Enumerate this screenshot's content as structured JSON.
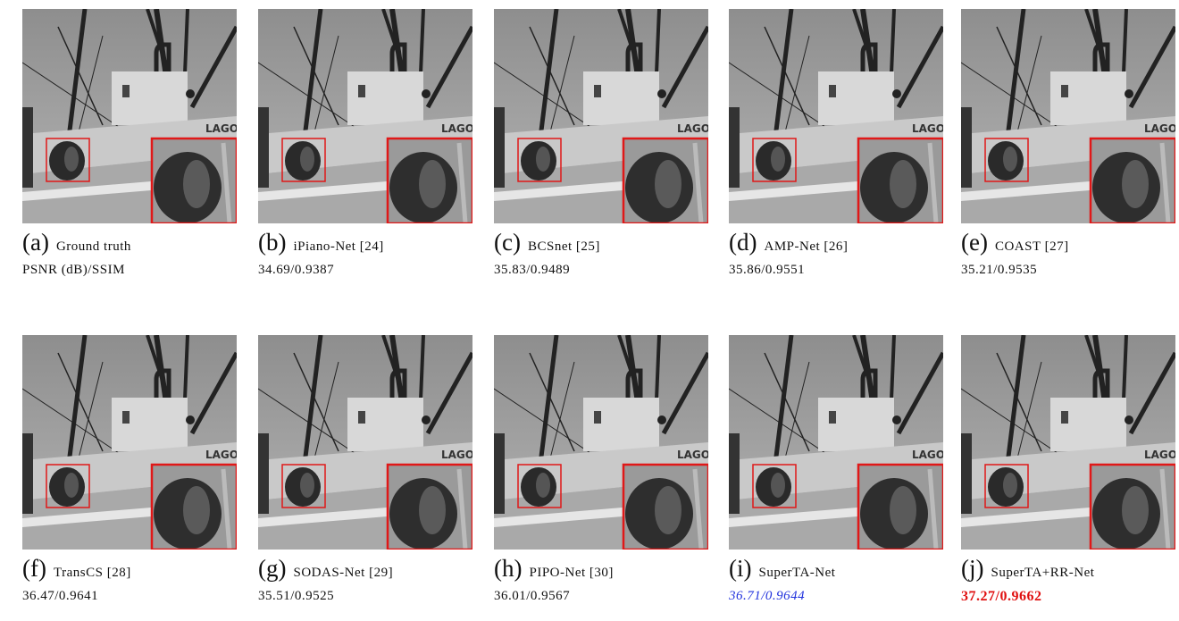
{
  "panels": [
    {
      "letter": "(a)",
      "name": "Ground truth",
      "metric": "PSNR (dB)/SSIM"
    },
    {
      "letter": "(b)",
      "name": "iPiano-Net [24]",
      "metric": "34.69/0.9387"
    },
    {
      "letter": "(c)",
      "name": "BCSnet [25]",
      "metric": "35.83/0.9489"
    },
    {
      "letter": "(d)",
      "name": "AMP-Net [26]",
      "metric": "35.86/0.9551"
    },
    {
      "letter": "(e)",
      "name": "COAST [27]",
      "metric": "35.21/0.9535"
    },
    {
      "letter": "(f)",
      "name": "TransCS [28]",
      "metric": "36.47/0.9641"
    },
    {
      "letter": "(g)",
      "name": "SODAS-Net [29]",
      "metric": "35.51/0.9525"
    },
    {
      "letter": "(h)",
      "name": "PIPO-Net [30]",
      "metric": "36.01/0.9567"
    },
    {
      "letter": "(i)",
      "name": "SuperTA-Net",
      "metric": "36.71/0.9644"
    },
    {
      "letter": "(j)",
      "name": "SuperTA+RR-Net",
      "metric": "37.27/0.9662"
    }
  ]
}
